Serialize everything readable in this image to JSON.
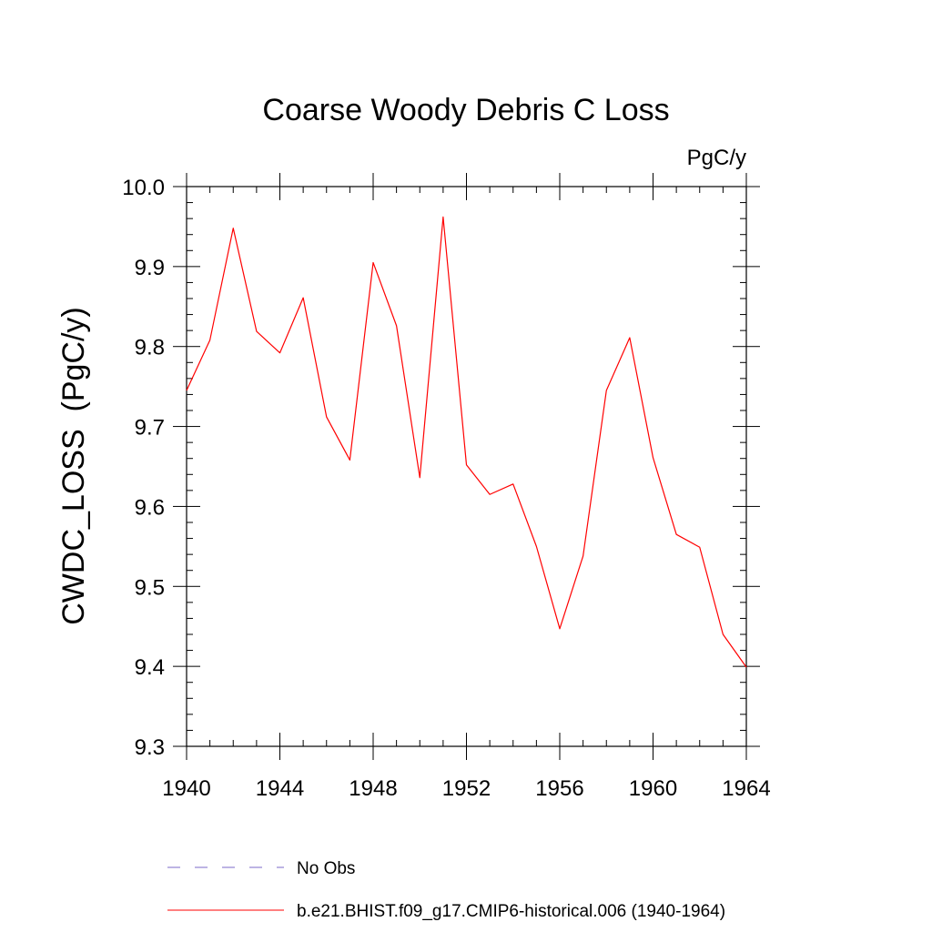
{
  "chart_data": {
    "type": "line",
    "title": "Coarse Woody Debris C Loss",
    "units_label": "PgC/y",
    "ylabel": "CWDC_LOSS  (PgC/y)",
    "xlabel": "",
    "xlim": [
      1940,
      1964
    ],
    "ylim": [
      9.3,
      10.0
    ],
    "xticks": [
      1940,
      1944,
      1948,
      1952,
      1956,
      1960,
      1964
    ],
    "yticks": [
      "9.3",
      "9.4",
      "9.5",
      "9.6",
      "9.7",
      "9.8",
      "9.9",
      "10.0"
    ],
    "grid": false,
    "legend_position": "bottom",
    "series": [
      {
        "name": "b.e21.BHIST.f09_g17.CMIP6-historical.006 (1940-1964)",
        "color": "#ff0000",
        "x": [
          1940,
          1941,
          1942,
          1943,
          1944,
          1945,
          1946,
          1947,
          1948,
          1949,
          1950,
          1951,
          1952,
          1953,
          1954,
          1955,
          1956,
          1957,
          1958,
          1959,
          1960,
          1961,
          1962,
          1963,
          1964
        ],
        "y": [
          9.745,
          9.808,
          9.948,
          9.819,
          9.792,
          9.861,
          9.712,
          9.658,
          9.905,
          9.826,
          9.636,
          9.962,
          9.652,
          9.615,
          9.628,
          9.55,
          9.447,
          9.538,
          9.745,
          9.811,
          9.661,
          9.565,
          9.549,
          9.44,
          9.399
        ]
      }
    ],
    "legend": [
      {
        "label": "No Obs",
        "color": "#7b68c8",
        "style": "dashed"
      },
      {
        "label": "b.e21.BHIST.f09_g17.CMIP6-historical.006 (1940-1964)",
        "color": "#ff0000",
        "style": "solid"
      }
    ]
  }
}
